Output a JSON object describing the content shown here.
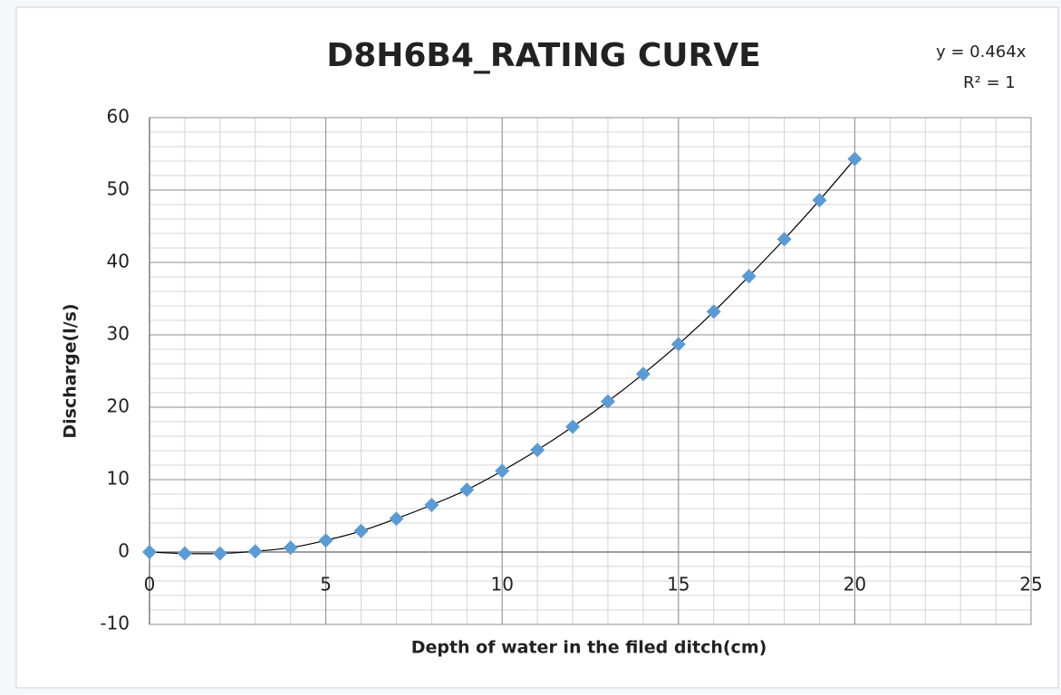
{
  "chart_data": {
    "type": "scatter",
    "title": "D8H6B4_RATING CURVE",
    "annotations": [
      "y =  0.464x",
      "R² = 1"
    ],
    "xlabel": "Depth of water in the filed ditch(cm)",
    "ylabel": "Discharge(l/s)",
    "series": [
      {
        "name": "Discharge",
        "color": "#5b9bd5",
        "x": [
          0,
          1,
          2,
          3,
          4,
          5,
          6,
          7,
          8,
          9,
          10,
          11,
          12,
          13,
          14,
          15,
          16,
          17,
          18,
          19,
          20
        ],
        "values": [
          0,
          -0.2,
          -0.2,
          0.1,
          0.6,
          1.6,
          2.9,
          4.6,
          6.5,
          8.6,
          11.2,
          14.1,
          17.3,
          20.8,
          24.6,
          28.7,
          33.2,
          38.1,
          43.2,
          48.6,
          54.3
        ]
      }
    ],
    "trendline_color": "#000000",
    "xlim": [
      0,
      25
    ],
    "xticks": [
      0,
      5,
      10,
      15,
      20,
      25
    ],
    "ylim": [
      -10,
      60
    ],
    "yticks": [
      -10,
      0,
      10,
      20,
      30,
      40,
      50,
      60
    ],
    "grid": true,
    "minor_grid": {
      "x": 1,
      "y": 2
    }
  }
}
